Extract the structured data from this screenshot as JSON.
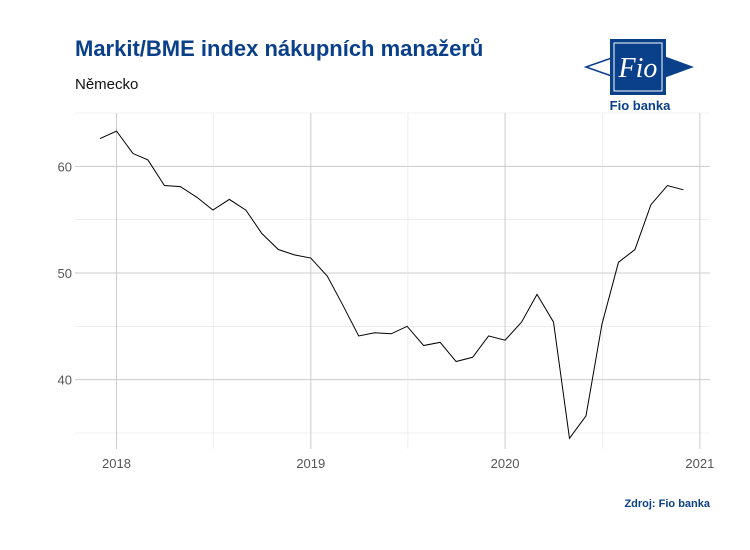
{
  "header": {
    "title": "Markit/BME index nákupních manažerů",
    "subtitle": "Německo"
  },
  "logo": {
    "text": "Fio",
    "caption": "Fio banka",
    "color": "#0a3f8a"
  },
  "footer": {
    "source": "Zdroj: Fio banka"
  },
  "chart_data": {
    "type": "line",
    "title": "Markit/BME index nákupních manažerů",
    "subtitle": "Německo",
    "xlabel": "",
    "ylabel": "",
    "x_ticks": [
      "2018",
      "2019",
      "2020",
      "2021"
    ],
    "y_ticks": [
      40,
      50,
      60
    ],
    "xlim": [
      "2017-10-15",
      "2021-01-20"
    ],
    "ylim": [
      33.5,
      65
    ],
    "grid": true,
    "line_color": "#000000",
    "series": [
      {
        "x": [
          "2017-12",
          "2018-01",
          "2018-02",
          "2018-03",
          "2018-04",
          "2018-05",
          "2018-06",
          "2018-07",
          "2018-08",
          "2018-09",
          "2018-10",
          "2018-11",
          "2018-12",
          "2019-01",
          "2019-02",
          "2019-03",
          "2019-04",
          "2019-05",
          "2019-06",
          "2019-07",
          "2019-08",
          "2019-09",
          "2019-10",
          "2019-11",
          "2019-12",
          "2020-01",
          "2020-02",
          "2020-03",
          "2020-04",
          "2020-05",
          "2020-06",
          "2020-07",
          "2020-08",
          "2020-09",
          "2020-10",
          "2020-11",
          "2020-12"
        ],
        "values": [
          62.6,
          63.3,
          61.2,
          60.6,
          58.2,
          58.1,
          57.1,
          55.9,
          56.9,
          55.9,
          53.7,
          52.2,
          51.7,
          51.4,
          49.7,
          47.1,
          44.1,
          44.4,
          44.3,
          45.0,
          43.2,
          43.5,
          41.7,
          42.1,
          44.1,
          43.7,
          45.4,
          48.0,
          45.4,
          34.5,
          36.6,
          45.2,
          51.0,
          52.2,
          56.4,
          58.2,
          57.8
        ]
      }
    ]
  }
}
